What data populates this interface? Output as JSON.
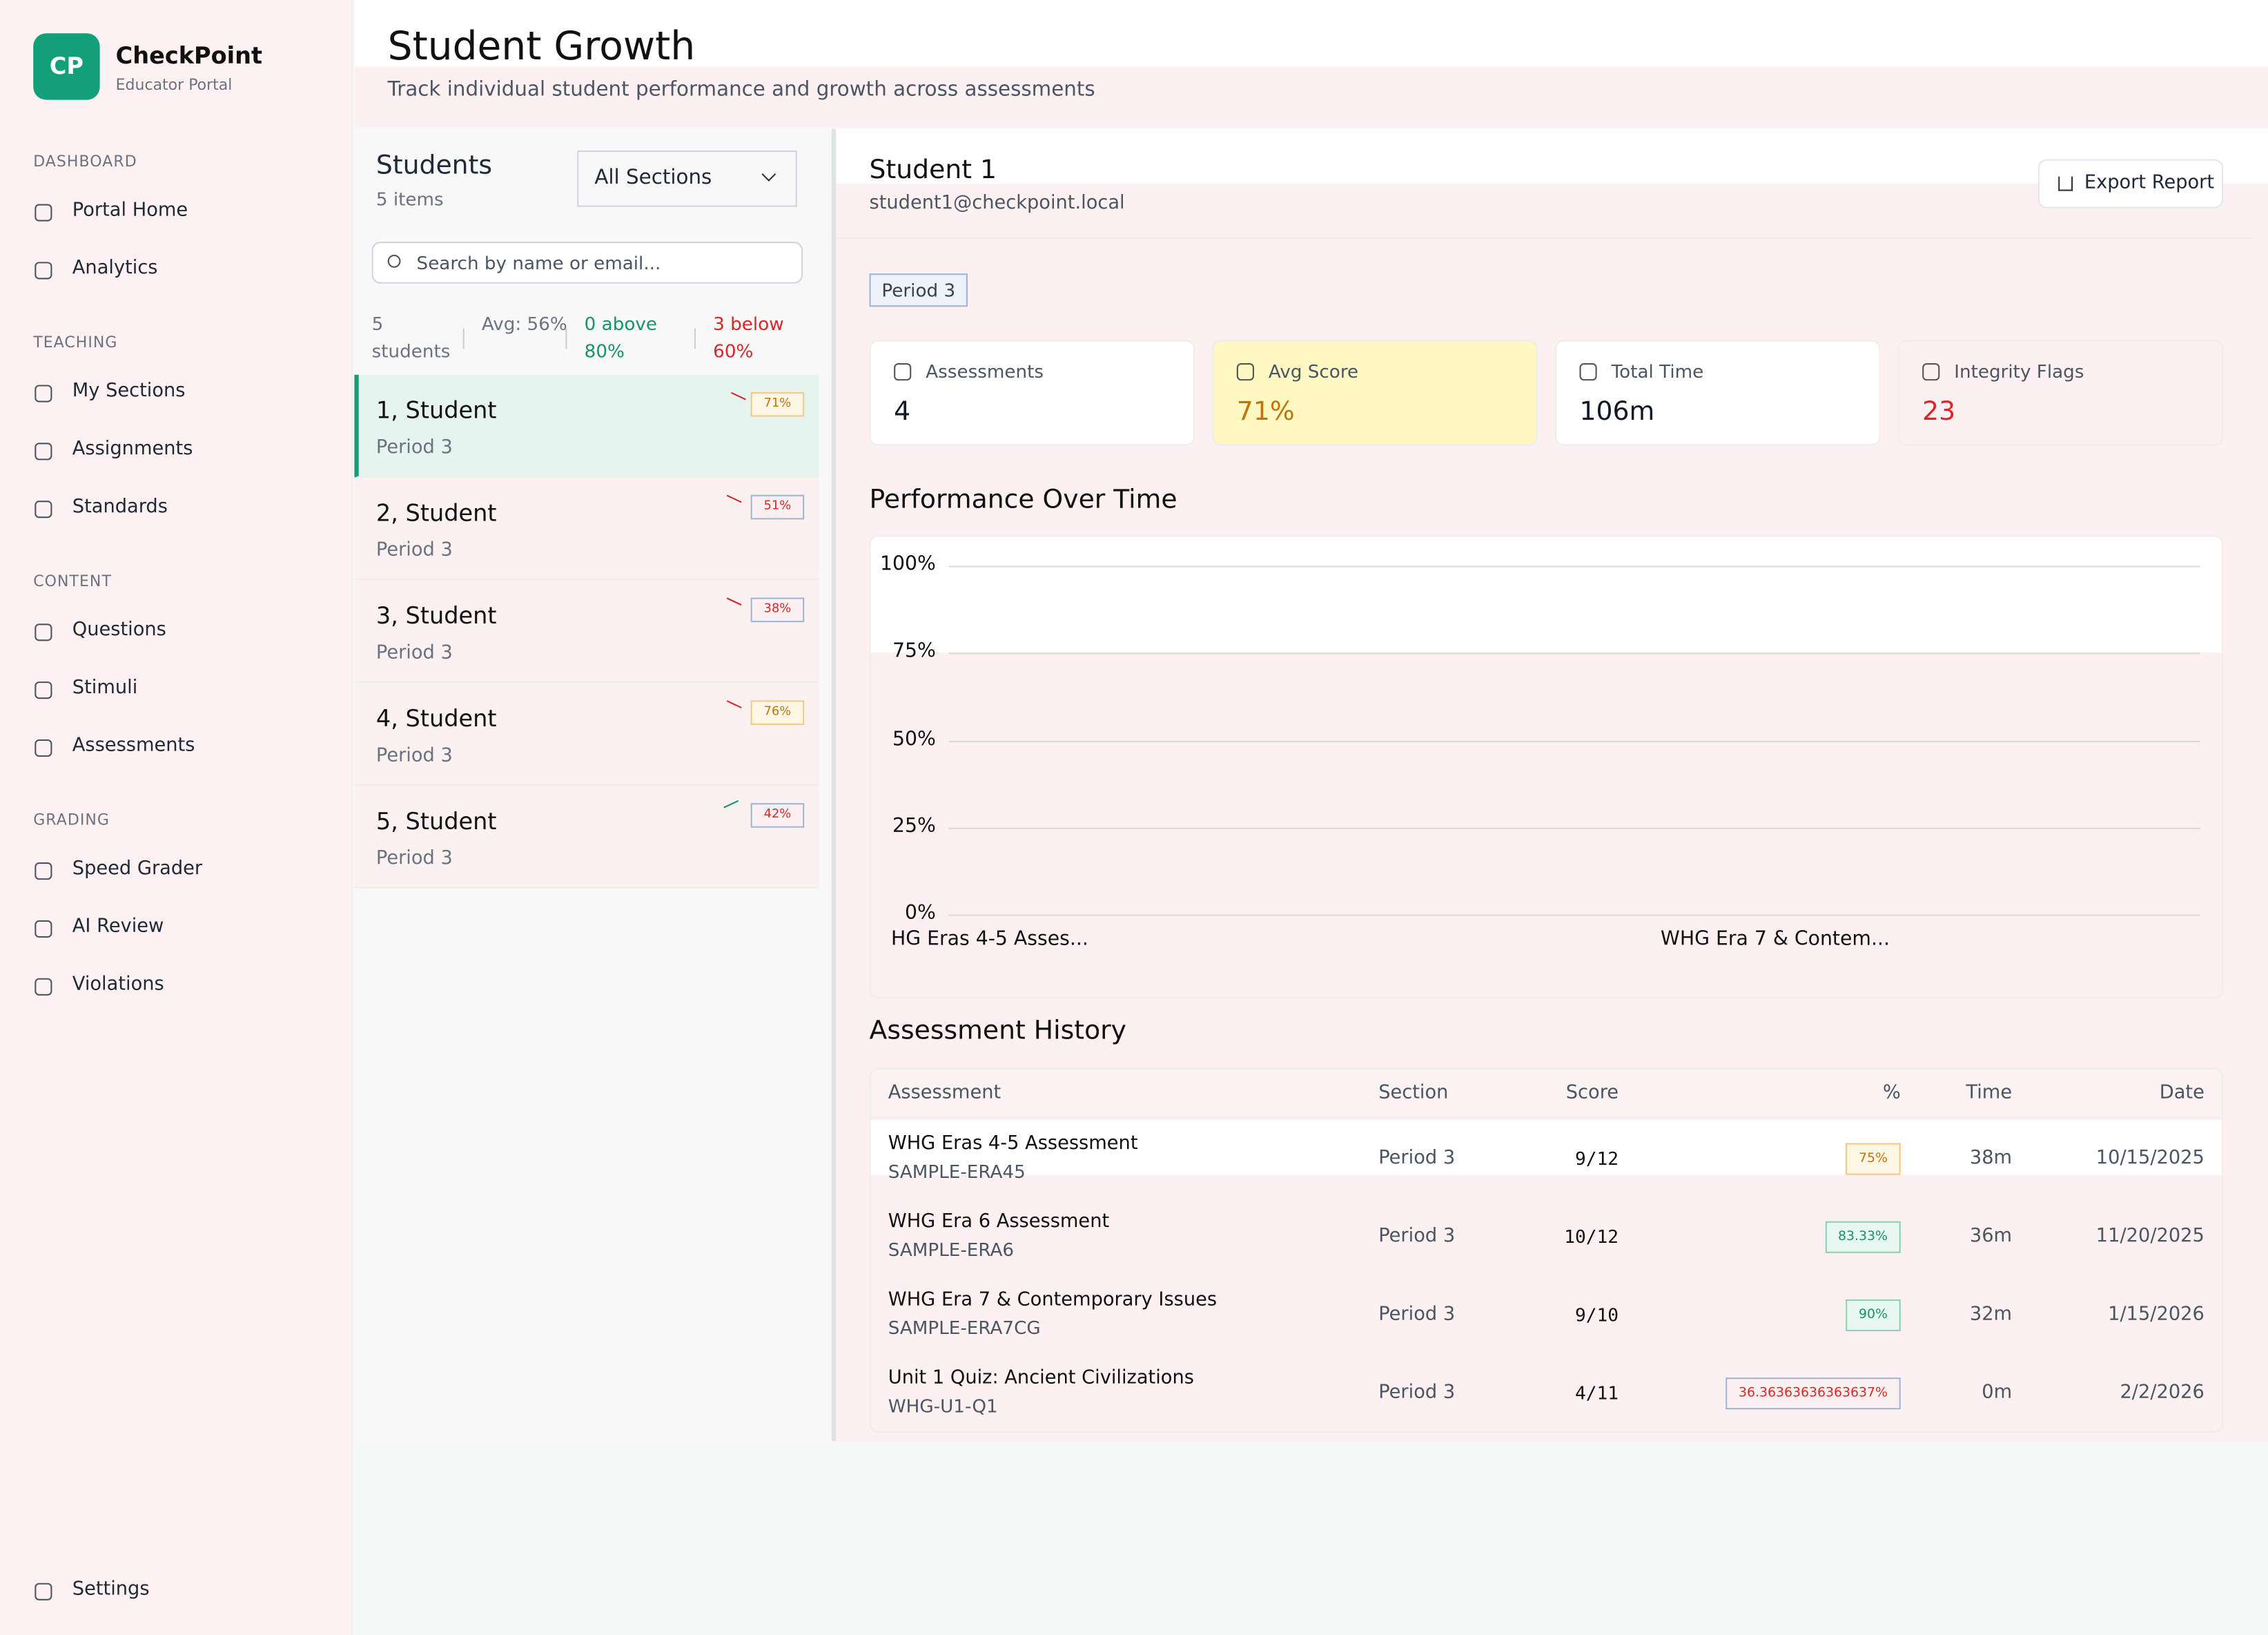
{
  "sidebar": {
    "brand": {
      "logo": "CP",
      "name": "CheckPoint",
      "subtitle": "Educator Portal"
    },
    "groups": [
      {
        "label": "DASHBOARD",
        "items": [
          "Portal Home",
          "Analytics"
        ]
      },
      {
        "label": "TEACHING",
        "items": [
          "My Sections",
          "Assignments",
          "Standards"
        ]
      },
      {
        "label": "CONTENT",
        "items": [
          "Questions",
          "Stimuli",
          "Assessments"
        ]
      },
      {
        "label": "GRADING",
        "items": [
          "Speed Grader",
          "AI Review",
          "Violations"
        ]
      }
    ],
    "settings": "Settings"
  },
  "header": {
    "title": "Student Growth",
    "subtitle": "Track individual student performance and growth across assessments"
  },
  "students": {
    "title": "Students",
    "count": "5 items",
    "section_filter": "All Sections",
    "search_placeholder": "Search by name or email...",
    "stats": [
      {
        "text": "5 students",
        "tone": "muted"
      },
      {
        "text": "Avg: 56%",
        "tone": "muted"
      },
      {
        "text": "0 above 80%",
        "tone": "success"
      },
      {
        "text": "3 below 60%",
        "tone": "danger"
      }
    ],
    "rows": [
      {
        "name": "1, Student",
        "section": "Period 3",
        "trend": "down",
        "score": "71%",
        "tone": "warning",
        "selected": true
      },
      {
        "name": "2, Student",
        "section": "Period 3",
        "trend": "down",
        "score": "51%",
        "tone": "danger",
        "selected": false
      },
      {
        "name": "3, Student",
        "section": "Period 3",
        "trend": "down",
        "score": "38%",
        "tone": "danger",
        "selected": false
      },
      {
        "name": "4, Student",
        "section": "Period 3",
        "trend": "down",
        "score": "76%",
        "tone": "warning",
        "selected": false
      },
      {
        "name": "5, Student",
        "section": "Period 3",
        "trend": "up",
        "score": "42%",
        "tone": "danger",
        "selected": false
      }
    ]
  },
  "detail": {
    "name": "Student 1",
    "email": "student1@checkpoint.local",
    "section_badge": "Period 3",
    "export": "Export Report",
    "stats": [
      {
        "label": "Assessments",
        "value": "4",
        "tone": "plain"
      },
      {
        "label": "Avg Score",
        "value": "71%",
        "tone": "warning"
      },
      {
        "label": "Total Time",
        "value": "106m",
        "tone": "plain"
      },
      {
        "label": "Integrity Flags",
        "value": "23",
        "tone": "danger"
      }
    ]
  },
  "performance": {
    "title": "Performance Over Time",
    "ylim": [
      0,
      100
    ],
    "yticks": [
      {
        "value": 100,
        "label": "100%"
      },
      {
        "value": 75,
        "label": "75%"
      },
      {
        "value": 50,
        "label": "50%"
      },
      {
        "value": 25,
        "label": "25%"
      },
      {
        "value": 0,
        "label": "0%"
      }
    ],
    "x_labels": [
      "HG Eras 4-5 Asses...",
      "WHG Era 7 & Contem..."
    ]
  },
  "history": {
    "title": "Assessment History",
    "columns": [
      "Assessment",
      "Section",
      "Score",
      "%",
      "Time",
      "Date"
    ],
    "rows": [
      {
        "assessment": "WHG Eras 4-5 Assessment",
        "code": "SAMPLE-ERA45",
        "section": "Period 3",
        "score": "9/12",
        "percent": "75%",
        "tone": "warning",
        "time": "38m",
        "date": "10/15/2025"
      },
      {
        "assessment": "WHG Era 6 Assessment",
        "code": "SAMPLE-ERA6",
        "section": "Period 3",
        "score": "10/12",
        "percent": "83.33%",
        "tone": "success",
        "time": "36m",
        "date": "11/20/2025"
      },
      {
        "assessment": "WHG Era 7 & Contemporary Issues",
        "code": "SAMPLE-ERA7CG",
        "section": "Period 3",
        "score": "9/10",
        "percent": "90%",
        "tone": "success",
        "time": "32m",
        "date": "1/15/2026"
      },
      {
        "assessment": "Unit 1 Quiz: Ancient Civilizations",
        "code": "WHG-U1-Q1",
        "section": "Period 3",
        "score": "4/11",
        "percent": "36.36363636363637%",
        "tone": "danger",
        "time": "0m",
        "date": "2/2/2026"
      }
    ]
  }
}
